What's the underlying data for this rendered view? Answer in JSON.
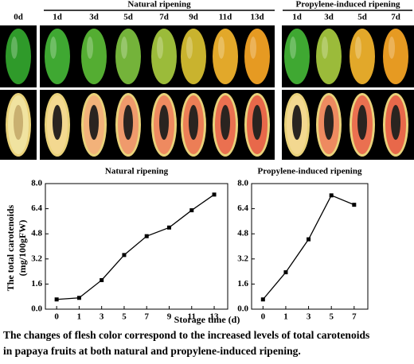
{
  "photos": {
    "control_label": "0d",
    "natural_title": "Natural ripening",
    "natural_days": [
      "1d",
      "3d",
      "5d",
      "7d",
      "9d",
      "11d",
      "13d"
    ],
    "propylene_title": "Propylene-induced ripening",
    "propylene_days": [
      "1d",
      "3d",
      "5d",
      "7d"
    ]
  },
  "chart_data": [
    {
      "type": "line",
      "title": "Natural ripening",
      "categories": [
        "0",
        "1",
        "3",
        "5",
        "7",
        "9",
        "11",
        "13"
      ],
      "values": [
        0.62,
        0.72,
        1.85,
        3.45,
        4.65,
        5.2,
        6.3,
        7.3
      ],
      "color": "#000000",
      "ylim": [
        0,
        8
      ],
      "yticks": [
        {
          "value": 0,
          "label": "0.0"
        },
        1.6,
        3.2,
        4.8,
        6.4,
        {
          "value": 8,
          "label": "8.0"
        }
      ],
      "ylabel": [
        "The total carotenoids",
        "(mg/100gFW)"
      ],
      "xlabel": "Storage time (d)"
    },
    {
      "type": "line",
      "title": "Propylene-induced ripening",
      "categories": [
        "0",
        "1",
        "3",
        "5",
        "7"
      ],
      "values": [
        0.62,
        2.35,
        4.45,
        7.25,
        6.65
      ],
      "color": "#000000",
      "ylim": [
        0,
        8
      ],
      "yticks": [
        {
          "value": 0,
          "label": "0.0"
        },
        1.6,
        3.2,
        4.8,
        6.4,
        {
          "value": 8,
          "label": "8.0"
        }
      ]
    }
  ],
  "caption": [
    "The changes of flesh color correspond to the increased levels of total carotenoids",
    "in papaya fruits at both natural and propylene-induced ripening."
  ]
}
